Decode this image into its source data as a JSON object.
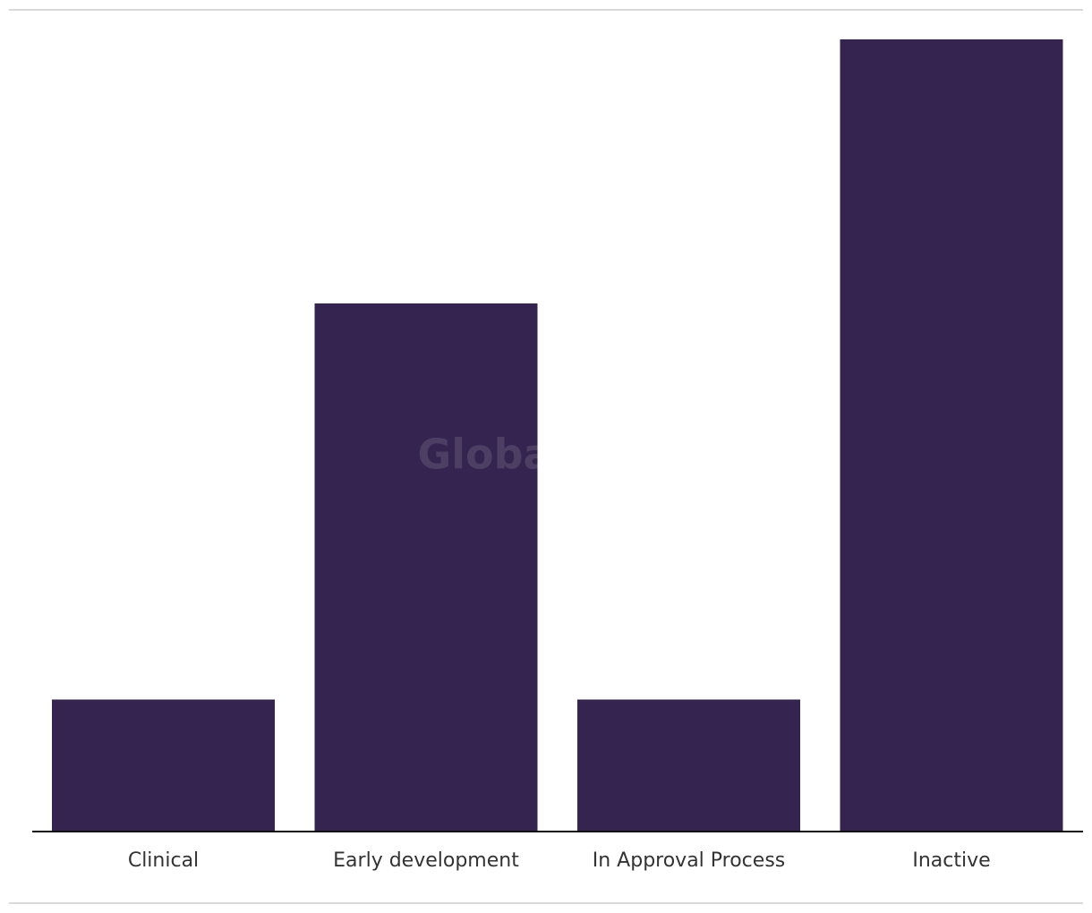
{
  "chart_data": {
    "type": "bar",
    "watermark": "GlobalData",
    "categories": [
      "Clinical",
      "Early development",
      "In Approval Process",
      "Inactive"
    ],
    "values": [
      1,
      4,
      1,
      6
    ],
    "color": "#35244f",
    "ylim": [
      0,
      6
    ]
  }
}
